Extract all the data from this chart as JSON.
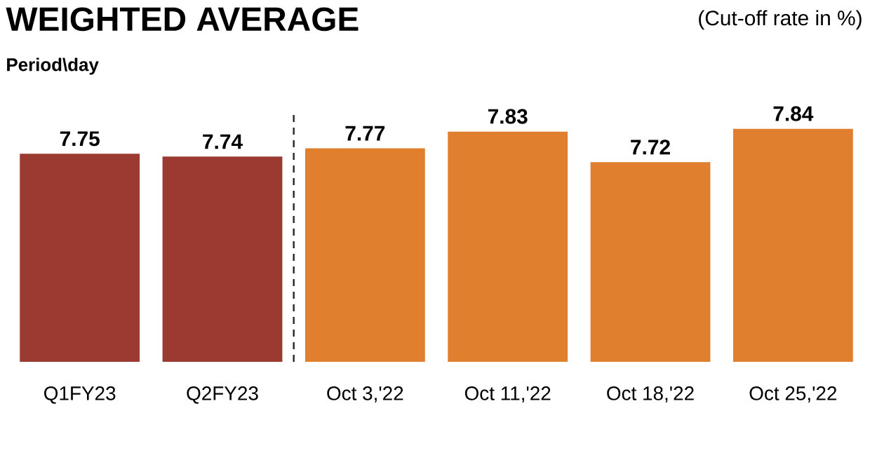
{
  "chart_data": {
    "type": "bar",
    "title": "WEIGHTED AVERAGE",
    "subtitle": "(Cut-off rate in %)",
    "annotations": [
      "Period\\day"
    ],
    "categories": [
      "Q1FY23",
      "Q2FY23",
      "Oct 3,'22",
      "Oct 11,'22",
      "Oct 18,'22",
      "Oct 25,'22"
    ],
    "values": [
      7.75,
      7.74,
      7.77,
      7.83,
      7.72,
      7.84
    ],
    "colors": [
      "#9b3a30",
      "#9b3a30",
      "#e07f2e",
      "#e07f2e",
      "#e07f2e",
      "#e07f2e"
    ],
    "ylim": [
      7,
      7.9
    ],
    "tick_labels": "x",
    "data_labels": true
  }
}
